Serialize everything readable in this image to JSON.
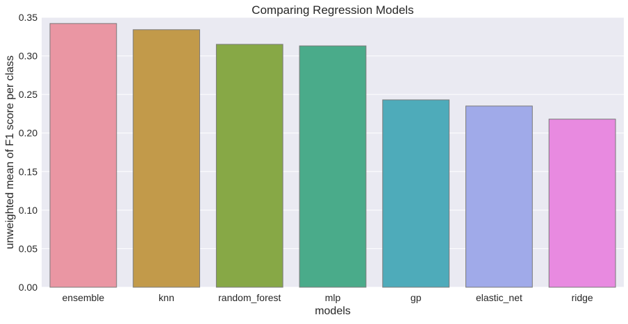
{
  "chart_data": {
    "type": "bar",
    "title": "Comparing Regression Models",
    "xlabel": "models",
    "ylabel": "unweighted mean of F1 score per class",
    "categories": [
      "ensemble",
      "knn",
      "random_forest",
      "mlp",
      "gp",
      "elastic_net",
      "ridge"
    ],
    "values": [
      0.342,
      0.334,
      0.315,
      0.313,
      0.243,
      0.235,
      0.218
    ],
    "ylim": [
      0,
      0.35
    ],
    "yticks": [
      "0.00",
      "0.05",
      "0.10",
      "0.15",
      "0.20",
      "0.25",
      "0.30",
      "0.35"
    ],
    "grid": true,
    "legend": "none"
  },
  "style": {
    "plot_background": "#eaeaf2",
    "grid_color": "#ffffff",
    "bar_edge_color": "#7a7a7a",
    "bar_colors": [
      "#ea96a3",
      "#c29a4a",
      "#87a846",
      "#4aab8a",
      "#4eabba",
      "#a0aae9",
      "#e88ae0"
    ]
  }
}
